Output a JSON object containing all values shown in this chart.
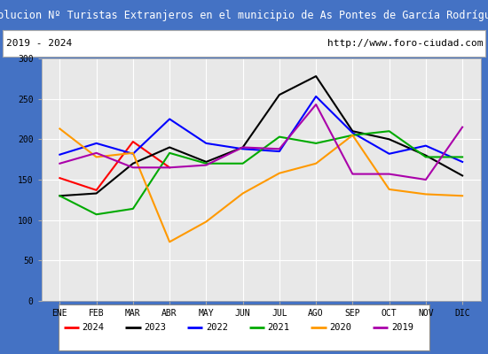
{
  "title": "Evolucion Nº Turistas Extranjeros en el municipio de As Pontes de García Rodríguez",
  "subtitle_left": "2019 - 2024",
  "subtitle_right": "http://www.foro-ciudad.com",
  "x_labels": [
    "ENE",
    "FEB",
    "MAR",
    "ABR",
    "MAY",
    "JUN",
    "JUL",
    "AGO",
    "SEP",
    "OCT",
    "NOV",
    "DIC"
  ],
  "ylim": [
    0,
    300
  ],
  "yticks": [
    0,
    50,
    100,
    150,
    200,
    250,
    300
  ],
  "series": {
    "2024": {
      "color": "#ff0000",
      "data": [
        152,
        137,
        197,
        165,
        null,
        null,
        null,
        null,
        null,
        null,
        null,
        null
      ]
    },
    "2023": {
      "color": "#000000",
      "data": [
        130,
        133,
        170,
        190,
        172,
        190,
        255,
        278,
        210,
        200,
        180,
        155
      ]
    },
    "2022": {
      "color": "#0000ff",
      "data": [
        181,
        195,
        182,
        225,
        195,
        188,
        185,
        253,
        208,
        182,
        192,
        172
      ]
    },
    "2021": {
      "color": "#00aa00",
      "data": [
        130,
        107,
        114,
        183,
        170,
        170,
        203,
        195,
        205,
        210,
        178,
        178
      ]
    },
    "2020": {
      "color": "#ff9900",
      "data": [
        213,
        178,
        183,
        73,
        98,
        133,
        158,
        170,
        205,
        138,
        132,
        130
      ]
    },
    "2019": {
      "color": "#aa00aa",
      "data": [
        170,
        183,
        165,
        165,
        168,
        190,
        188,
        243,
        157,
        157,
        150,
        215
      ]
    }
  },
  "title_bg": "#4472c4",
  "title_color": "#ffffff",
  "subtitle_bg": "#ffffff",
  "subtitle_border": "#aaaaaa",
  "subtitle_color": "#000000",
  "plot_bg": "#e8e8e8",
  "grid_color": "#ffffff",
  "fig_bg": "#4472c4",
  "legend_bg": "#ffffff",
  "legend_border": "#888888",
  "years_order": [
    "2024",
    "2023",
    "2022",
    "2021",
    "2020",
    "2019"
  ]
}
